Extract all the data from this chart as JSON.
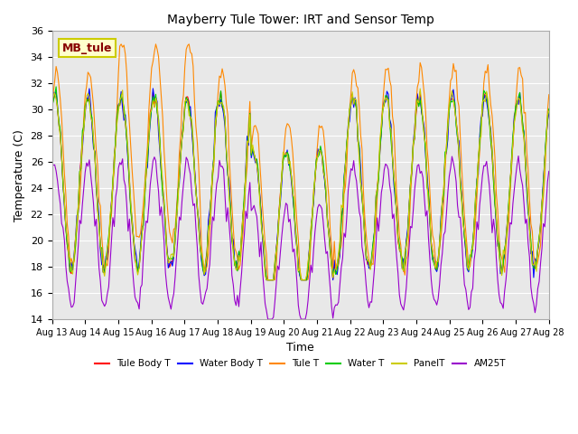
{
  "title": "Mayberry Tule Tower: IRT and Sensor Temp",
  "xlabel": "Time",
  "ylabel": "Temperature (C)",
  "ylim": [
    14,
    36
  ],
  "yticks": [
    14,
    16,
    18,
    20,
    22,
    24,
    26,
    28,
    30,
    32,
    34,
    36
  ],
  "xtick_labels": [
    "Aug 13",
    "Aug 14",
    "Aug 15",
    "Aug 16",
    "Aug 17",
    "Aug 18",
    "Aug 19",
    "Aug 20",
    "Aug 21",
    "Aug 22",
    "Aug 23",
    "Aug 24",
    "Aug 25",
    "Aug 26",
    "Aug 27",
    "Aug 28"
  ],
  "legend_labels": [
    "Tule Body T",
    "Water Body T",
    "Tule T",
    "Water T",
    "PanelT",
    "AM25T"
  ],
  "legend_colors": [
    "#ff0000",
    "#0000ff",
    "#ff8800",
    "#00cc00",
    "#cccc00",
    "#9900cc"
  ],
  "line_colors": [
    "#ff0000",
    "#0000ff",
    "#ff8800",
    "#00cc00",
    "#cccc00",
    "#9900cc"
  ],
  "background_color": "#e8e8e8",
  "grid_color": "#ffffff",
  "watermark_text": "MB_tule",
  "watermark_bg": "#ffffcc",
  "watermark_border": "#cccc00",
  "watermark_text_color": "#880000"
}
